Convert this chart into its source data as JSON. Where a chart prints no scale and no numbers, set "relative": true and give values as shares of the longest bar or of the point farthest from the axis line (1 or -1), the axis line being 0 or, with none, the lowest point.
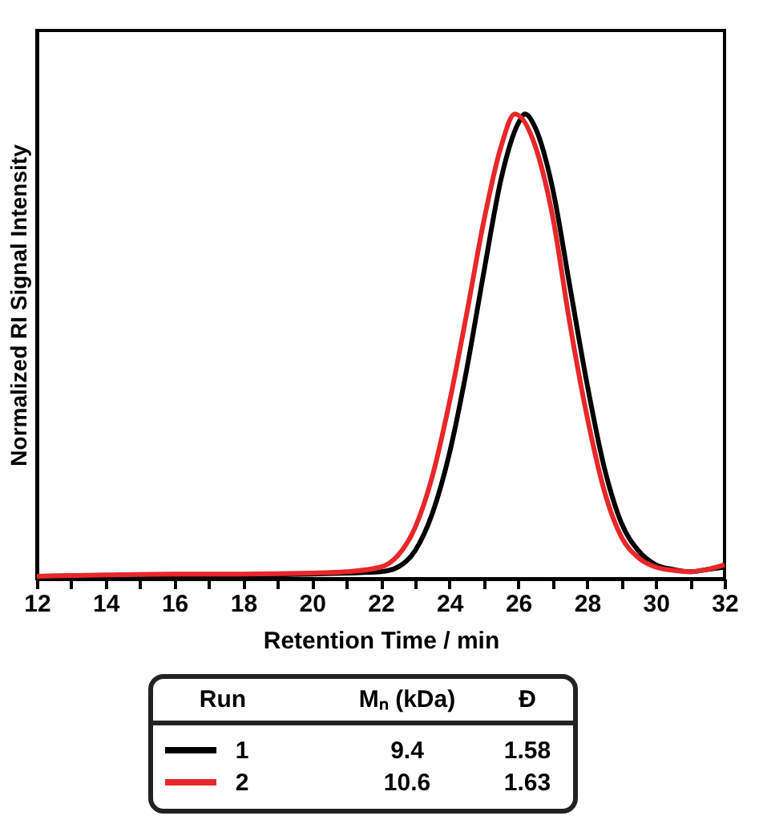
{
  "chart_data": {
    "type": "line",
    "xlabel": "Retention Time / min",
    "ylabel": "Normalized RI Signal Intensity",
    "relative": true,
    "x": [
      12,
      14,
      16,
      18,
      20,
      21,
      22,
      22.5,
      23,
      23.5,
      24,
      24.5,
      25,
      25.5,
      26,
      26.2,
      26.5,
      27,
      27.5,
      28,
      28.5,
      29,
      29.5,
      30,
      30.5,
      31,
      31.5,
      32
    ],
    "series": [
      {
        "name": "1",
        "color": "#000000",
        "values": [
          0.005,
          0.007,
          0.008,
          0.008,
          0.01,
          0.012,
          0.015,
          0.025,
          0.06,
          0.14,
          0.27,
          0.45,
          0.66,
          0.86,
          0.98,
          1.0,
          0.97,
          0.84,
          0.63,
          0.42,
          0.24,
          0.12,
          0.06,
          0.03,
          0.02,
          0.015,
          0.02,
          0.025
        ]
      },
      {
        "name": "2",
        "color": "#e8272a",
        "x": [
          12,
          14,
          16,
          18,
          20,
          21,
          22,
          22.5,
          23,
          23.5,
          24,
          24.5,
          25,
          25.5,
          25.9,
          26.5,
          27,
          27.5,
          28,
          28.5,
          29,
          29.5,
          30,
          30.5,
          31,
          31.5,
          32
        ],
        "values": [
          0.005,
          0.008,
          0.01,
          0.01,
          0.012,
          0.015,
          0.025,
          0.05,
          0.11,
          0.22,
          0.38,
          0.57,
          0.77,
          0.93,
          1.0,
          0.93,
          0.78,
          0.55,
          0.35,
          0.19,
          0.09,
          0.045,
          0.025,
          0.018,
          0.015,
          0.02,
          0.03
        ]
      }
    ],
    "xlim": [
      12,
      32
    ],
    "xticks": [
      12,
      {
        "value": 13,
        "label": null
      },
      14,
      {
        "value": 15,
        "label": null
      },
      16,
      {
        "value": 17,
        "label": null
      },
      18,
      {
        "value": 19,
        "label": null
      },
      20,
      {
        "value": 21,
        "label": null
      },
      22,
      {
        "value": 23,
        "label": null
      },
      24,
      {
        "value": 25,
        "label": null
      },
      26,
      {
        "value": 27,
        "label": null
      },
      28,
      {
        "value": 29,
        "label": null
      },
      30,
      {
        "value": 31,
        "label": null
      },
      32
    ],
    "grid": false,
    "legend": "bottom",
    "marker": "none",
    "line_style": "solid",
    "tick_labels": "x",
    "annotations": [
      "Run",
      "Mₙ (kDa)",
      "Đ",
      "9.4",
      "1.58",
      "10.6",
      "1.63"
    ]
  }
}
